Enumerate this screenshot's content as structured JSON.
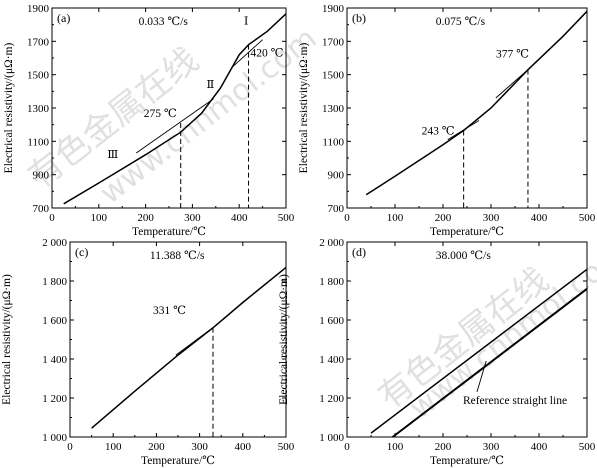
{
  "chart_data": [
    {
      "type": "line",
      "panel": "(a)",
      "rate": "0.033 ℃/s",
      "xlabel": "Temperature/℃",
      "ylabel": "Electrical resistivity/(μΩ·m)",
      "xlim": [
        0,
        500
      ],
      "ylim": [
        700,
        1900
      ],
      "xticks": [
        "0",
        "100",
        "200",
        "300",
        "400",
        "500"
      ],
      "yticks": [
        "700",
        "900",
        "1100",
        "1300",
        "1500",
        "1700",
        "1900"
      ],
      "series": [
        {
          "x": [
            25,
            100,
            200,
            275,
            320,
            360,
            400,
            420,
            460,
            500
          ],
          "y": [
            725,
            850,
            1020,
            1155,
            1270,
            1420,
            1620,
            1680,
            1760,
            1865
          ]
        }
      ],
      "tangents": [
        {
          "x": [
            180,
            345
          ],
          "y": [
            1030,
            1355
          ]
        },
        {
          "x": [
            385,
            450
          ],
          "y": [
            1545,
            1710
          ]
        }
      ],
      "markers": [
        {
          "x": 275,
          "y": 1210,
          "label": "275 ℃"
        },
        {
          "x": 420,
          "y": 1680,
          "label": "420 ℃"
        }
      ],
      "regions": [
        {
          "text": "Ⅰ",
          "x": 410,
          "y": 1800
        },
        {
          "text": "Ⅱ",
          "x": 330,
          "y": 1420
        },
        {
          "text": "Ⅲ",
          "x": 118,
          "y": 1000
        }
      ]
    },
    {
      "type": "line",
      "panel": "(b)",
      "rate": "0.075 ℃/s",
      "xlabel": "Temperature/℃",
      "ylabel": "Electrical resistivity/(μΩ·m)",
      "xlim": [
        0,
        500
      ],
      "ylim": [
        700,
        1900
      ],
      "xticks": [
        "0",
        "100",
        "200",
        "300",
        "400",
        "500"
      ],
      "yticks": [
        "700",
        "900",
        "1100",
        "1300",
        "1500",
        "1700",
        "1900"
      ],
      "series": [
        {
          "x": [
            40,
            100,
            200,
            243,
            300,
            377,
            450,
            500
          ],
          "y": [
            780,
            890,
            1080,
            1165,
            1300,
            1530,
            1730,
            1880
          ]
        }
      ],
      "tangents": [
        {
          "x": [
            210,
            275
          ],
          "y": [
            1110,
            1225
          ]
        },
        {
          "x": [
            310,
            385
          ],
          "y": [
            1360,
            1550
          ]
        }
      ],
      "markers": [
        {
          "x": 243,
          "y": 1165,
          "label": "243 ℃"
        },
        {
          "x": 377,
          "y": 1530,
          "label": "377 ℃"
        }
      ],
      "regions": []
    },
    {
      "type": "line",
      "panel": "(c)",
      "rate": "11.388 ℃/s",
      "xlabel": "Temperature/℃",
      "ylabel": "Electrical resistivity/(μΩ·m)",
      "xlim": [
        0,
        500
      ],
      "ylim": [
        1000,
        2000
      ],
      "xticks": [
        "0",
        "100",
        "200",
        "300",
        "400",
        "500"
      ],
      "yticks": [
        "1 000",
        "1 200",
        "1 400",
        "1 600",
        "1 800",
        "2 000"
      ],
      "series": [
        {
          "x": [
            50,
            150,
            250,
            331,
            400,
            500
          ],
          "y": [
            1045,
            1235,
            1420,
            1560,
            1690,
            1870
          ]
        }
      ],
      "tangents": [
        {
          "x": [
            245,
            330
          ],
          "y": [
            1420,
            1560
          ]
        }
      ],
      "markers": [
        {
          "x": 331,
          "y": 1560,
          "label": "331 ℃"
        }
      ],
      "regions": []
    },
    {
      "type": "line",
      "panel": "(d)",
      "rate": "38.000 ℃/s",
      "xlabel": "Temperature/℃",
      "ylabel": "Electrical resistivity/(μΩ·m)",
      "xlim": [
        0,
        500
      ],
      "ylim": [
        1000,
        2000
      ],
      "xticks": [
        "0",
        "100",
        "200",
        "300",
        "400",
        "500"
      ],
      "yticks": [
        "1 000",
        "1 200",
        "1 400",
        "1 600",
        "1 800",
        "2 000"
      ],
      "series": [
        {
          "x": [
            50,
            500
          ],
          "y": [
            1020,
            1860
          ]
        },
        {
          "x": [
            95,
            500
          ],
          "y": [
            1000,
            1760
          ]
        }
      ],
      "tangents": [],
      "markers": [],
      "annotation": {
        "text": "Reference straight line",
        "x": 350,
        "y": 1170,
        "arrow_to": {
          "x": 290,
          "y": 1390
        }
      },
      "regions": []
    }
  ],
  "watermark": {
    "chinese": "有色金属在线",
    "url": "www.cnnmol.com"
  }
}
